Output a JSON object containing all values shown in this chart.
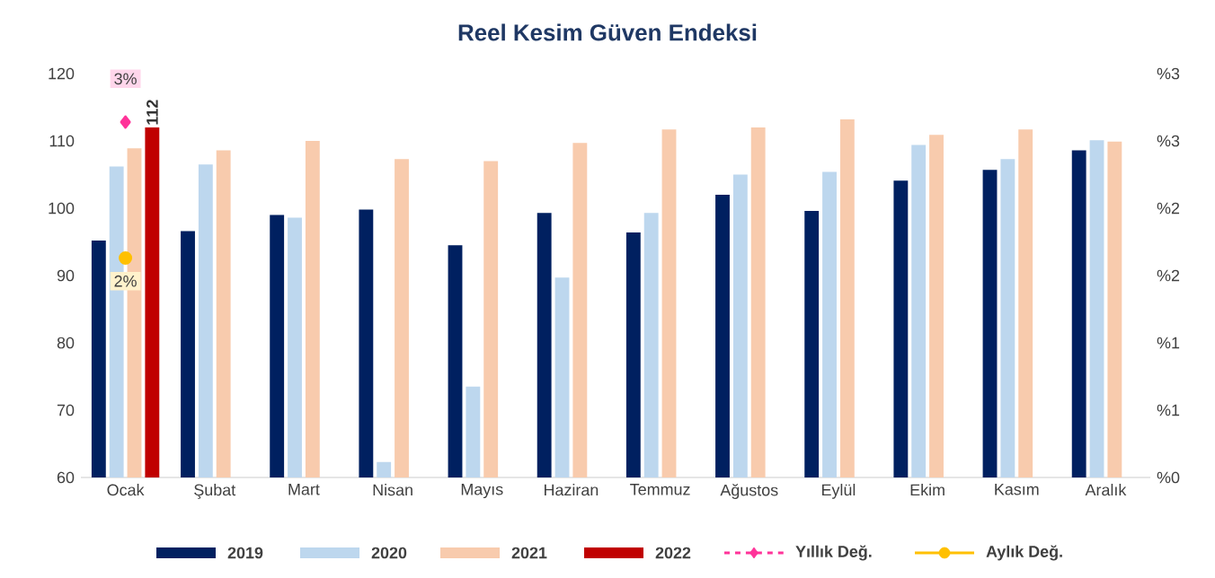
{
  "chart_data": {
    "type": "bar",
    "title": "Reel Kesim Güven Endeksi",
    "categories": [
      "Ocak",
      "Şubat",
      "Mart",
      "Nisan",
      "Mayıs",
      "Haziran",
      "Temmuz",
      "Ağustos",
      "Eylül",
      "Ekim",
      "Kasım",
      "Aralık"
    ],
    "series": [
      {
        "name": "2019",
        "color": "#002060",
        "values": [
          95.2,
          96.6,
          99.0,
          99.8,
          94.5,
          99.3,
          96.4,
          102.0,
          99.6,
          104.1,
          105.7,
          108.6
        ]
      },
      {
        "name": "2020",
        "color": "#bdd7ee",
        "values": [
          106.2,
          106.5,
          98.6,
          62.3,
          73.5,
          89.7,
          99.3,
          105.0,
          105.4,
          109.4,
          107.3,
          110.1
        ]
      },
      {
        "name": "2021",
        "color": "#f8cbad",
        "values": [
          108.9,
          108.6,
          110.0,
          107.3,
          107.0,
          109.7,
          111.7,
          112.0,
          113.2,
          110.9,
          111.7,
          109.9
        ]
      },
      {
        "name": "2022",
        "color": "#c00000",
        "values": [
          112,
          null,
          null,
          null,
          null,
          null,
          null,
          null,
          null,
          null,
          null,
          null
        ],
        "value_labels": [
          "112",
          null,
          null,
          null,
          null,
          null,
          null,
          null,
          null,
          null,
          null,
          null
        ]
      },
      {
        "name": "Yıllık Değ.",
        "type": "line",
        "axis": "y2",
        "color": "#ff3399",
        "marker": "diamond",
        "line_style": "dashed",
        "values": [
          2.64,
          null,
          null,
          null,
          null,
          null,
          null,
          null,
          null,
          null,
          null,
          null
        ],
        "value_labels": [
          "3%",
          null,
          null,
          null,
          null,
          null,
          null,
          null,
          null,
          null,
          null,
          null
        ]
      },
      {
        "name": "Aylık Değ.",
        "type": "line",
        "axis": "y2",
        "color": "#ffc000",
        "marker": "circle",
        "line_style": "solid",
        "values": [
          1.63,
          null,
          null,
          null,
          null,
          null,
          null,
          null,
          null,
          null,
          null,
          null
        ],
        "value_labels": [
          "2%",
          null,
          null,
          null,
          null,
          null,
          null,
          null,
          null,
          null,
          null,
          null
        ]
      }
    ],
    "ylim": [
      60,
      120
    ],
    "yticks": [
      60,
      70,
      80,
      90,
      100,
      110,
      120
    ],
    "y2lim": [
      0,
      3
    ],
    "y2ticks": [
      {
        "value": 0,
        "label": "%0"
      },
      {
        "value": 0.5,
        "label": "%1"
      },
      {
        "value": 1,
        "label": "%1"
      },
      {
        "value": 1.5,
        "label": "%2"
      },
      {
        "value": 2,
        "label": "%2"
      },
      {
        "value": 2.5,
        "label": "%3"
      },
      {
        "value": 3,
        "label": "%3"
      }
    ],
    "legend": "bottom"
  }
}
